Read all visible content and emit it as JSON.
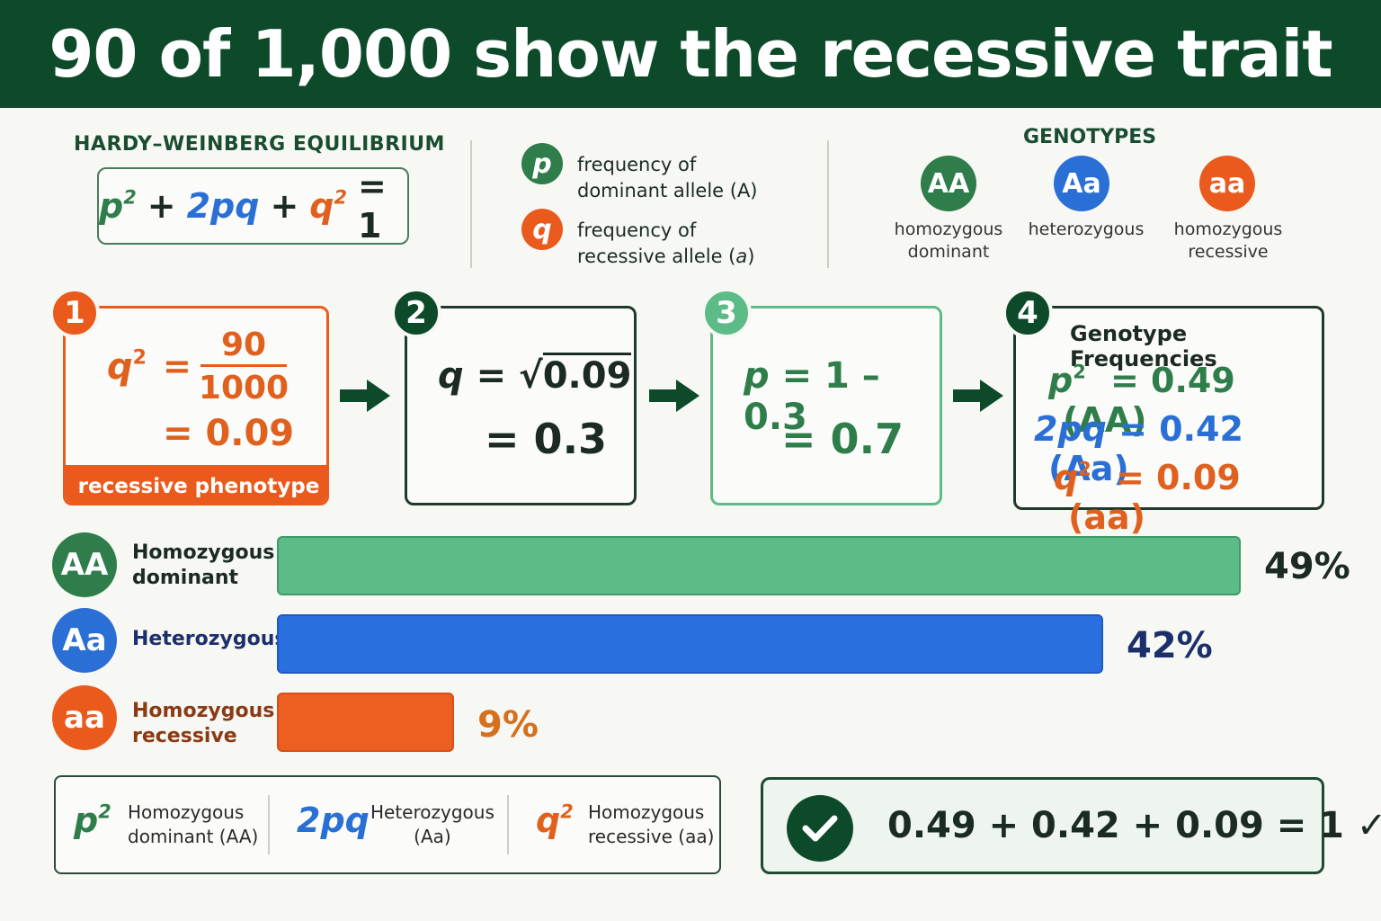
{
  "title": "90 of 1,000 show the recessive trait",
  "equation": {
    "heading": "HARDY–WEINBERG EQUILIBRIUM",
    "p2": "p",
    "plus1": "+",
    "twopq": "2pq",
    "plus2": "+",
    "q2": "q",
    "eq": "= 1",
    "exp": "2"
  },
  "legend": {
    "p_symbol": "p",
    "p_line1": "frequency of",
    "p_line2": "dominant allele (A)",
    "q_symbol": "q",
    "q_line1": "frequency of",
    "q_line2_prefix": "recessive allele (",
    "q_line2_var": "a",
    "q_line2_suffix": ")"
  },
  "genotypes": {
    "heading": "GENOTYPES",
    "items": [
      {
        "symbol": "AA",
        "line1": "homozygous",
        "line2": "dominant",
        "color": "#2e7d4a"
      },
      {
        "symbol": "Aa",
        "line1": "heterozygous",
        "line2": "",
        "color": "#2a6fd6"
      },
      {
        "symbol": "aa",
        "line1": "homozygous",
        "line2": "recessive",
        "color": "#ea5a1c"
      }
    ]
  },
  "steps": {
    "s1": {
      "num": "1",
      "lhs": "q",
      "exp": "2",
      "eq": "=",
      "numerator": "90",
      "denominator": "1000",
      "result": "= 0.09",
      "footer": "recessive phenotype"
    },
    "s2": {
      "num": "2",
      "line1_lhs": "q",
      "line1_eq": "=",
      "radicand": "0.09",
      "result": "= 0.3"
    },
    "s3": {
      "num": "3",
      "line1": "= 1 – 0.3",
      "var": "p",
      "result": "= 0.7"
    },
    "s4": {
      "num": "4",
      "heading": "Genotype Frequencies",
      "rows": [
        {
          "var": "p",
          "exp": "2",
          "value": "= 0.49",
          "geno": "(AA)"
        },
        {
          "var": "2pq",
          "exp": "",
          "value": "= 0.42",
          "geno": "(Aa)"
        },
        {
          "var": "q",
          "exp": "2",
          "value": "= 0.09",
          "geno": "(aa)"
        }
      ]
    }
  },
  "chart_data": {
    "type": "bar",
    "orientation": "horizontal",
    "categories": [
      "Homozygous dominant",
      "Heterozygous",
      "Homozygous recessive"
    ],
    "symbols": [
      "AA",
      "Aa",
      "aa"
    ],
    "values": [
      49,
      42,
      9
    ],
    "labels": [
      "49%",
      "42%",
      "9%"
    ],
    "colors": [
      "#5dbb88",
      "#2a6fe0",
      "#ec5f20"
    ],
    "xlim": [
      0,
      49
    ]
  },
  "key": [
    {
      "sym": "p",
      "exp": "2",
      "line1": "Homozygous",
      "line2": "dominant (AA)"
    },
    {
      "sym": "2pq",
      "exp": "",
      "line1": "Heterozygous",
      "line2": "(Aa)"
    },
    {
      "sym": "q",
      "exp": "2",
      "line1": "Homozygous",
      "line2": "recessive (aa)"
    }
  ],
  "sum": {
    "text": "0.49 + 0.42 + 0.09 = 1 ✓"
  }
}
